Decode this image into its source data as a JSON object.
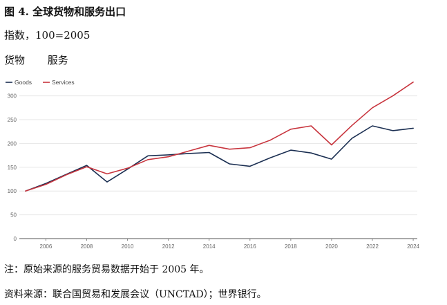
{
  "header": {
    "title": "图 4. 全球货物和服务出口",
    "subtitle": "指数，100=2005",
    "legend_cn": [
      "货物",
      "服务"
    ]
  },
  "footer": {
    "note": "注：原始来源的服务贸易数据开始于 2005 年。",
    "source": "资料来源：联合国贸易和发展会议（UNCTAD）；世界银行。"
  },
  "chart_data": {
    "type": "line",
    "x": [
      2005,
      2006,
      2007,
      2008,
      2009,
      2010,
      2011,
      2012,
      2013,
      2014,
      2015,
      2016,
      2017,
      2018,
      2019,
      2020,
      2021,
      2022,
      2023,
      2024
    ],
    "xticks": [
      "2006",
      "2008",
      "2010",
      "2012",
      "2014",
      "2016",
      "2018",
      "2020",
      "2022",
      "2024"
    ],
    "yticks": [
      0,
      50,
      100,
      150,
      200,
      250,
      300
    ],
    "ylim": [
      0,
      330
    ],
    "xlim": [
      2004.7,
      2024.2
    ],
    "grid": true,
    "legend_position": "top-left",
    "series": [
      {
        "name": "Goods",
        "color": "#1b2f52",
        "values": [
          100,
          116,
          135,
          154,
          119,
          146,
          174,
          176,
          179,
          181,
          157,
          152,
          170,
          186,
          180,
          167,
          211,
          237,
          227,
          232
        ]
      },
      {
        "name": "Services",
        "color": "#c8353e",
        "values": [
          100,
          114,
          134,
          151,
          136,
          148,
          166,
          172,
          184,
          196,
          188,
          191,
          207,
          230,
          237,
          197,
          238,
          275,
          300,
          329
        ]
      }
    ]
  }
}
